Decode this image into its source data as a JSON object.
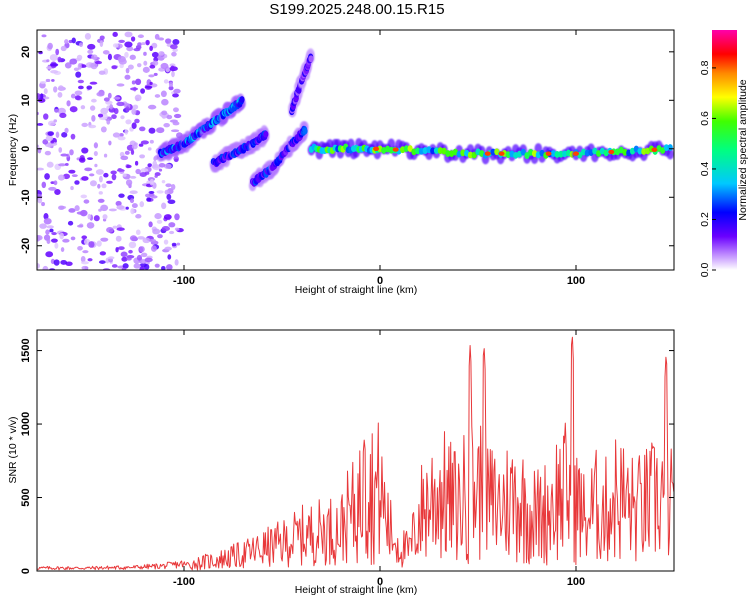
{
  "title": "S199.2025.248.00.15.R15",
  "chart_data": [
    {
      "type": "heatmap",
      "xlabel": "Height of straight line (km)",
      "ylabel": "Frequency (Hz)",
      "xlim": [
        -175,
        150
      ],
      "ylim": [
        -25,
        24.5
      ],
      "xticks": [
        -100,
        0,
        100
      ],
      "yticks": [
        -20,
        -10,
        0,
        10,
        20
      ],
      "colorbar": {
        "label": "Normalized spectral amplitude",
        "range": [
          0,
          0.95
        ],
        "ticks": [
          "0.0",
          "0.2",
          "0.4",
          "0.6",
          "0.8"
        ],
        "tick_values": [
          0,
          0.2,
          0.4,
          0.6,
          0.8
        ],
        "colors": [
          "#ffffff",
          "#8800ff",
          "#0000ff",
          "#00ffff",
          "#00ff00",
          "#ffff00",
          "#ff8800",
          "#ff0000",
          "#ff00aa"
        ]
      },
      "features": [
        {
          "name": "noise field",
          "x_range": [
            -175,
            -102
          ],
          "freq_range": [
            -25,
            24
          ],
          "amplitude": 0.05
        },
        {
          "name": "rising branch 1",
          "x": [
            -112,
            -100,
            -90,
            -80,
            -70
          ],
          "freq": [
            -1,
            1,
            4,
            7,
            10
          ],
          "amplitude": 0.25
        },
        {
          "name": "rising branch 2",
          "x": [
            -85,
            -75,
            -65,
            -58
          ],
          "freq": [
            -3,
            -1,
            1,
            3
          ],
          "amplitude": 0.2
        },
        {
          "name": "rising branch 3",
          "x": [
            -65,
            -55,
            -45,
            -38
          ],
          "freq": [
            -7,
            -4,
            1,
            4
          ],
          "amplitude": 0.2
        },
        {
          "name": "high branch",
          "x": [
            -45,
            -40,
            -35
          ],
          "freq": [
            8,
            14,
            19
          ],
          "amplitude": 0.15
        },
        {
          "name": "main trace",
          "x": [
            -35,
            0,
            50,
            100,
            150
          ],
          "freq": [
            0,
            0,
            -1,
            -1,
            0
          ],
          "amplitude": 0.45
        }
      ]
    },
    {
      "type": "line",
      "xlabel": "Height of straight line (km)",
      "ylabel": "SNR (10 * v/v)",
      "xlim": [
        -175,
        150
      ],
      "ylim": [
        0,
        1640
      ],
      "xticks": [
        -100,
        0,
        100
      ],
      "yticks": [
        0,
        500,
        1000,
        1500
      ],
      "series": [
        {
          "name": "SNR",
          "color": "#e8383a",
          "x": [
            -175,
            -150,
            -125,
            -110,
            -100,
            -90,
            -80,
            -70,
            -60,
            -50,
            -40,
            -30,
            -20,
            -10,
            -5,
            0,
            5,
            10,
            15,
            20,
            25,
            30,
            35,
            40,
            45,
            50,
            55,
            60,
            65,
            70,
            75,
            80,
            85,
            90,
            95,
            100,
            105,
            110,
            115,
            120,
            125,
            130,
            135,
            140,
            145,
            150
          ],
          "y": [
            20,
            20,
            25,
            35,
            50,
            80,
            110,
            150,
            200,
            250,
            320,
            360,
            380,
            700,
            820,
            800,
            400,
            250,
            200,
            550,
            700,
            800,
            700,
            650,
            800,
            850,
            700,
            650,
            700,
            750,
            600,
            550,
            600,
            750,
            800,
            700,
            500,
            650,
            600,
            750,
            700,
            600,
            650,
            700,
            800,
            600
          ],
          "peaks": [
            {
              "x": -8,
              "y": 900
            },
            {
              "x": 46,
              "y": 1550
            },
            {
              "x": 53,
              "y": 1560
            },
            {
              "x": 98,
              "y": 1640
            },
            {
              "x": 146,
              "y": 1500
            }
          ]
        }
      ]
    }
  ]
}
